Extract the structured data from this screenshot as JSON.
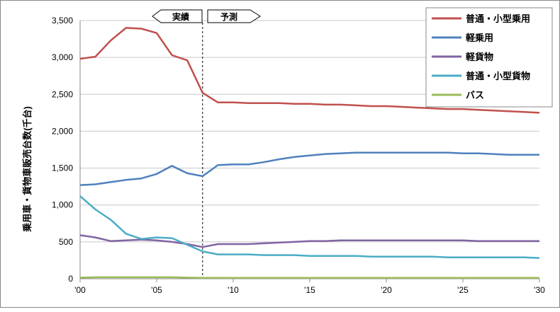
{
  "chart_data": {
    "type": "line",
    "ylabel": "乗用車・貨物車販売台数(千台)",
    "xlabel": "",
    "ylim": [
      0,
      3500
    ],
    "xlim": [
      2000,
      2030
    ],
    "yticks": [
      0,
      500,
      1000,
      1500,
      2000,
      2500,
      3000,
      3500
    ],
    "ytick_labels": [
      "0",
      "500",
      "1,000",
      "1,500",
      "2,000",
      "2,500",
      "3,000",
      "3,500"
    ],
    "xticks": [
      2000,
      2005,
      2010,
      2015,
      2020,
      2025,
      2030
    ],
    "xtick_labels": [
      "'00",
      "'05",
      "'10",
      "'15",
      "'20",
      "'25",
      "'30"
    ],
    "grid": "horizontal",
    "legend_position": "top-right",
    "divider_year": 2008,
    "annotations": {
      "left": "実績",
      "right": "予測"
    },
    "x": [
      2000,
      2001,
      2002,
      2003,
      2004,
      2005,
      2006,
      2007,
      2008,
      2009,
      2010,
      2011,
      2012,
      2013,
      2014,
      2015,
      2016,
      2017,
      2018,
      2019,
      2020,
      2021,
      2022,
      2023,
      2024,
      2025,
      2026,
      2027,
      2028,
      2029,
      2030
    ],
    "series": [
      {
        "name": "普通・小型乗用",
        "color": "#c0504d",
        "values": [
          2980,
          3010,
          3230,
          3400,
          3390,
          3330,
          3030,
          2960,
          2520,
          2390,
          2390,
          2380,
          2380,
          2380,
          2370,
          2370,
          2360,
          2360,
          2350,
          2340,
          2340,
          2330,
          2320,
          2310,
          2300,
          2300,
          2290,
          2280,
          2270,
          2260,
          2250
        ]
      },
      {
        "name": "軽乗用",
        "color": "#4f81bd",
        "values": [
          1270,
          1280,
          1310,
          1340,
          1360,
          1420,
          1530,
          1430,
          1390,
          1540,
          1550,
          1550,
          1580,
          1620,
          1650,
          1670,
          1690,
          1700,
          1710,
          1710,
          1710,
          1710,
          1710,
          1710,
          1710,
          1700,
          1700,
          1690,
          1680,
          1680,
          1680
        ]
      },
      {
        "name": "軽貨物",
        "color": "#8064a2",
        "values": [
          590,
          560,
          510,
          520,
          530,
          520,
          500,
          470,
          430,
          470,
          470,
          470,
          480,
          490,
          500,
          510,
          510,
          520,
          520,
          520,
          520,
          520,
          520,
          520,
          520,
          520,
          510,
          510,
          510,
          510,
          510
        ]
      },
      {
        "name": "普通・小型貨物",
        "color": "#4bacc6",
        "values": [
          1120,
          940,
          800,
          610,
          540,
          560,
          550,
          460,
          370,
          330,
          330,
          330,
          320,
          320,
          320,
          310,
          310,
          310,
          310,
          300,
          300,
          300,
          300,
          300,
          290,
          290,
          290,
          290,
          290,
          290,
          280
        ]
      },
      {
        "name": "バス",
        "color": "#9bbb59",
        "values": [
          15,
          20,
          20,
          20,
          20,
          20,
          20,
          15,
          12,
          12,
          12,
          12,
          12,
          12,
          12,
          12,
          12,
          12,
          12,
          12,
          12,
          12,
          12,
          12,
          12,
          12,
          12,
          12,
          12,
          12,
          12
        ]
      }
    ]
  }
}
